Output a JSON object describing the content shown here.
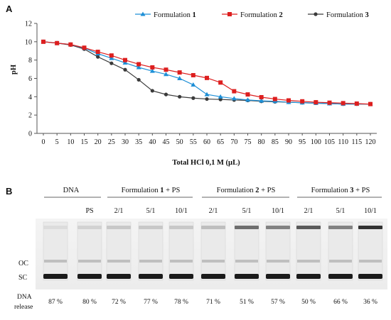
{
  "panels": {
    "a": "A",
    "b": "B"
  },
  "chart_data": {
    "type": "line",
    "title": "",
    "xlabel": "Total HCl 0,1 M (µL)",
    "ylabel": "pH",
    "x": [
      0,
      5,
      10,
      15,
      20,
      25,
      30,
      35,
      40,
      45,
      50,
      55,
      60,
      65,
      70,
      75,
      80,
      85,
      90,
      95,
      100,
      105,
      110,
      115,
      120
    ],
    "ylim": [
      0,
      12
    ],
    "yticks": [
      0,
      2,
      4,
      6,
      8,
      10,
      12
    ],
    "grid": false,
    "legend": "top",
    "series": [
      {
        "name": "Formulation 1",
        "name_prefix": "Formulation ",
        "name_num": "1",
        "color": "#1e8fd6",
        "marker": "triangle",
        "values": [
          10.0,
          9.85,
          9.7,
          9.3,
          8.7,
          8.2,
          7.7,
          7.2,
          6.8,
          6.45,
          6.0,
          5.3,
          4.25,
          4.0,
          3.8,
          3.65,
          3.55,
          3.5,
          3.4,
          3.35,
          3.3,
          3.25,
          3.2,
          3.2,
          3.2
        ]
      },
      {
        "name": "Formulation 2",
        "name_prefix": "Formulation ",
        "name_num": "2",
        "color": "#dd1f1f",
        "marker": "square",
        "values": [
          10.0,
          9.85,
          9.7,
          9.35,
          8.9,
          8.5,
          8.0,
          7.55,
          7.2,
          6.95,
          6.65,
          6.35,
          6.05,
          5.55,
          4.6,
          4.25,
          3.95,
          3.75,
          3.6,
          3.5,
          3.4,
          3.35,
          3.3,
          3.25,
          3.2
        ]
      },
      {
        "name": "Formulation 3",
        "name_prefix": "Formulation ",
        "name_num": "3",
        "color": "#3a3a3a",
        "marker": "circle",
        "values": [
          10.0,
          9.85,
          9.65,
          9.2,
          8.35,
          7.65,
          6.95,
          5.85,
          4.65,
          4.25,
          4.0,
          3.85,
          3.75,
          3.7,
          3.65,
          3.6,
          3.5,
          3.45,
          3.4,
          3.35,
          3.3,
          3.25,
          3.2,
          3.2,
          3.2
        ]
      }
    ]
  },
  "gel": {
    "groups": [
      {
        "label": "DNA",
        "label_num": "",
        "label_suffix": ""
      },
      {
        "label": "Formulation ",
        "label_num": "1",
        "label_suffix": " + PS"
      },
      {
        "label": "Formulation ",
        "label_num": "2",
        "label_suffix": " + PS"
      },
      {
        "label": "Formulation ",
        "label_num": "3",
        "label_suffix": " + PS"
      }
    ],
    "lanes": [
      {
        "label": "",
        "release": "87 %"
      },
      {
        "label": "PS",
        "release": "80 %"
      },
      {
        "label": "2/1",
        "release": "72 %"
      },
      {
        "label": "5/1",
        "release": "77 %"
      },
      {
        "label": "10/1",
        "release": "78 %"
      },
      {
        "label": "2/1",
        "release": "71 %"
      },
      {
        "label": "5/1",
        "release": "51 %"
      },
      {
        "label": "10/1",
        "release": "57 %"
      },
      {
        "label": "2/1",
        "release": "50 %"
      },
      {
        "label": "5/1",
        "release": "66 %"
      },
      {
        "label": "10/1",
        "release": "36 %"
      }
    ],
    "band_labels": {
      "oc": "OC",
      "sc": "SC"
    },
    "row_label_line1": "DNA",
    "row_label_line2": "release",
    "well_intensity": [
      0.05,
      0.1,
      0.15,
      0.15,
      0.15,
      0.2,
      0.6,
      0.5,
      0.7,
      0.5,
      0.9
    ]
  }
}
